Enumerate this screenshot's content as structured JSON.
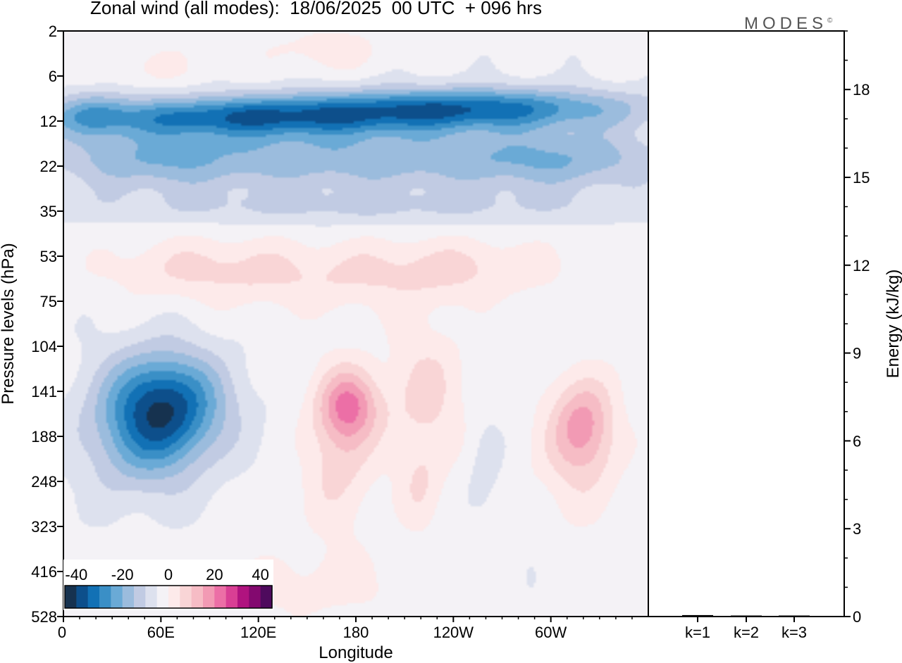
{
  "title": "Zonal wind (all modes):  18/06/2025  00 UTC  + 096 hrs",
  "logo": "MODES",
  "logo_mark": "©",
  "chart_data": [
    {
      "type": "heatmap",
      "xlabel": "Longitude",
      "ylabel": "Pressure levels (hPa)",
      "x_ticks": [
        "0",
        "60E",
        "120E",
        "180",
        "120W",
        "60W"
      ],
      "y_ticks": [
        "2",
        "6",
        "12",
        "22",
        "35",
        "53",
        "75",
        "104",
        "141",
        "188",
        "248",
        "323",
        "416",
        "528"
      ],
      "colorbar": {
        "ticks": [
          "-40",
          "-20",
          "0",
          "20",
          "40"
        ],
        "min": -45,
        "max": 45,
        "step": 5,
        "colors": [
          "#16324f",
          "#0d4f8b",
          "#1271b5",
          "#3a8fc6",
          "#6aaad6",
          "#9bbcdd",
          "#c1cbe3",
          "#dde1ee",
          "#f4f2f6",
          "#fdeaea",
          "#f9d5d6",
          "#f6bcc5",
          "#f29ab4",
          "#ec6fa6",
          "#d93f94",
          "#b0137f",
          "#83096f",
          "#4e0a5d"
        ]
      },
      "z_range": [
        -40,
        25
      ]
    },
    {
      "type": "bar",
      "categories": [
        "k=1",
        "k=2",
        "k=3"
      ],
      "values": [
        0.05,
        0.03,
        0.02
      ],
      "ylabel": "Energy (kJ/kg)",
      "ylim": [
        0,
        20
      ],
      "y_ticks": [
        "0",
        "3",
        "6",
        "9",
        "12",
        "15",
        "18"
      ],
      "bar_color": "#000000"
    }
  ]
}
